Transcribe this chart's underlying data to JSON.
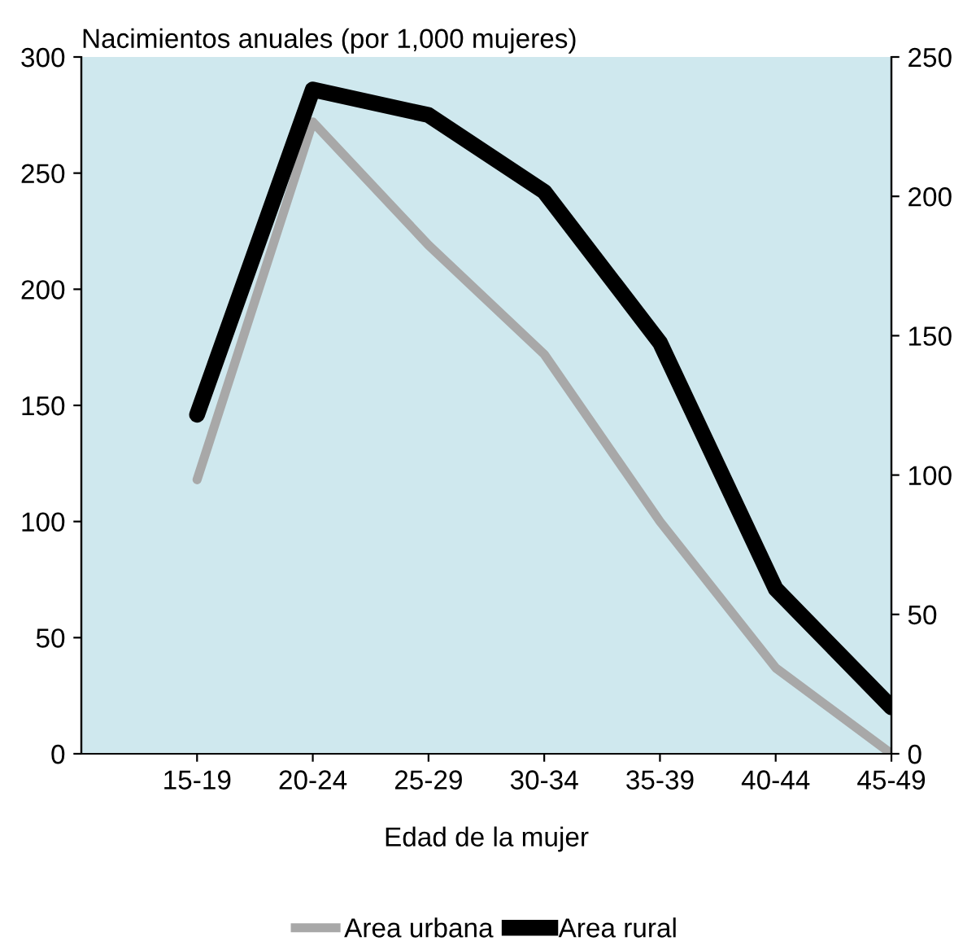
{
  "chart_data": {
    "type": "line",
    "ylabel": "Nacimientos anuales (por 1,000 mujeres)",
    "xlabel": "Edad de la mujer",
    "categories": [
      "15-19",
      "20-24",
      "25-29",
      "30-34",
      "35-39",
      "40-44",
      "45-49"
    ],
    "series": [
      {
        "name": "Area urbana",
        "color": "#a8a8a8",
        "values": [
          118,
          272,
          219,
          172,
          100,
          37,
          0
        ]
      },
      {
        "name": "Area rural",
        "color": "#000000",
        "values": [
          146,
          286,
          275,
          242,
          177,
          71,
          20
        ]
      }
    ],
    "ylim": [
      0,
      300
    ],
    "yticks": [
      0,
      50,
      100,
      150,
      200,
      250,
      300
    ],
    "y2lim": [
      0,
      250
    ],
    "y2ticks": [
      0,
      50,
      100,
      150,
      200,
      250
    ],
    "legend": "bottom",
    "grid": false,
    "marker": "none",
    "line_style": "solid"
  }
}
